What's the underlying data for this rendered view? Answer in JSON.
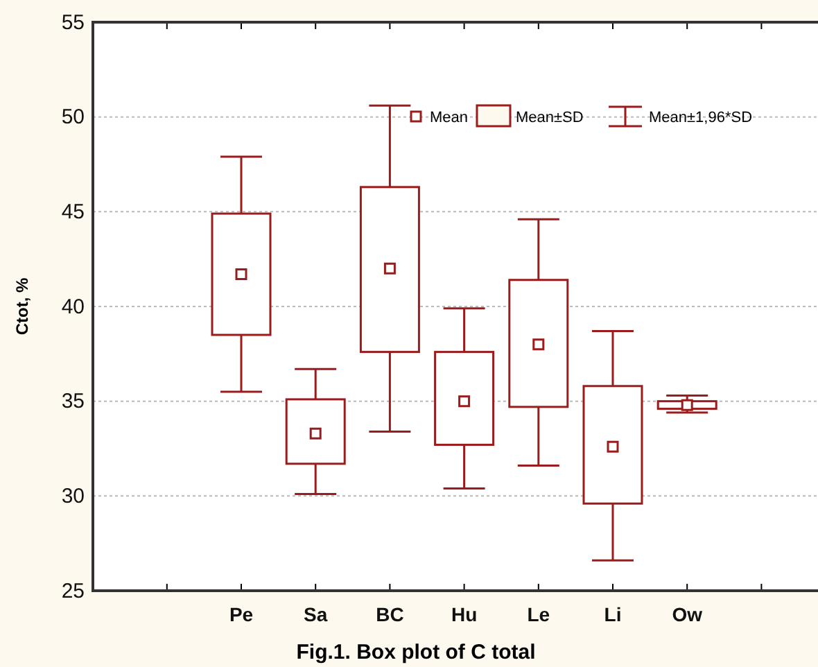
{
  "chart_data": {
    "type": "box",
    "title": "Fig.1. Box plot of C total",
    "ylabel": "Ctot, %",
    "categories": [
      "Pe",
      "Sa",
      "BC",
      "Hu",
      "Le",
      "Li",
      "Ow"
    ],
    "color": "#9b1c1c",
    "boxes": [
      {
        "low": 35.5,
        "q1": 38.5,
        "q3": 44.9,
        "high": 47.9,
        "mean": 41.7
      },
      {
        "low": 30.1,
        "q1": 31.7,
        "q3": 35.1,
        "high": 36.7,
        "mean": 33.3
      },
      {
        "low": 33.4,
        "q1": 37.6,
        "q3": 46.3,
        "high": 50.6,
        "mean": 42.0
      },
      {
        "low": 30.4,
        "q1": 32.7,
        "q3": 37.6,
        "high": 39.9,
        "mean": 35.0
      },
      {
        "low": 31.6,
        "q1": 34.7,
        "q3": 41.4,
        "high": 44.6,
        "mean": 38.0
      },
      {
        "low": 26.6,
        "q1": 29.6,
        "q3": 35.8,
        "high": 38.7,
        "mean": 32.6
      },
      {
        "low": 34.4,
        "q1": 34.6,
        "q3": 35.0,
        "high": 35.3,
        "mean": 34.8
      }
    ],
    "annotations": [
      "Mean",
      "Mean±SD",
      "Mean±1,96*SD"
    ],
    "ylim": [
      25,
      55
    ],
    "yticks": [
      25,
      30,
      35,
      40,
      45,
      50,
      55
    ],
    "grid": "y",
    "marker": "square"
  }
}
